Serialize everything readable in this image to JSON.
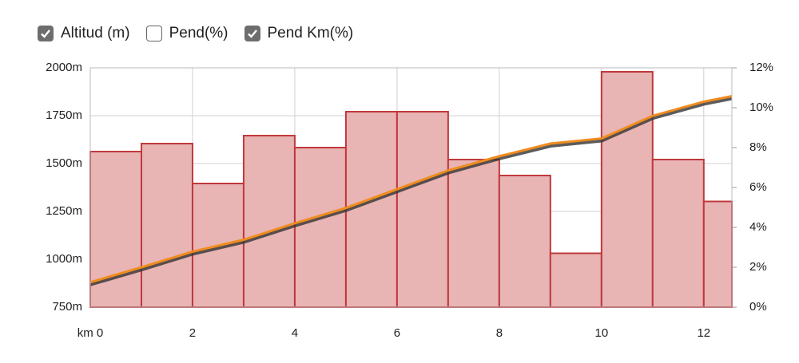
{
  "chart_data": {
    "type": "bar-line",
    "legend": [
      {
        "name": "Altitud (m)",
        "checked": true
      },
      {
        "name": "Pend(%)",
        "checked": false
      },
      {
        "name": "Pend Km(%)",
        "checked": true
      }
    ],
    "xlim": [
      0,
      12.55
    ],
    "xticks": [
      {
        "value": 0,
        "label": "km 0"
      },
      2,
      4,
      6,
      8,
      10,
      12
    ],
    "ylim": [
      750,
      2000
    ],
    "yticks": [
      {
        "value": 750,
        "label": "750m"
      },
      {
        "value": 1000,
        "label": "1000m"
      },
      {
        "value": 1250,
        "label": "1250m"
      },
      {
        "value": 1500,
        "label": "1500m"
      },
      {
        "value": 1750,
        "label": "1750m"
      },
      {
        "value": 2000,
        "label": "2000m"
      }
    ],
    "y2lim": [
      0,
      12
    ],
    "y2ticks": [
      {
        "value": 0,
        "label": "0%"
      },
      {
        "value": 2,
        "label": "2%"
      },
      {
        "value": 4,
        "label": "4%"
      },
      {
        "value": 6,
        "label": "6%"
      },
      {
        "value": 8,
        "label": "8%"
      },
      {
        "value": 10,
        "label": "10%"
      },
      {
        "value": 12,
        "label": "12%"
      }
    ],
    "grid": true,
    "series": [
      {
        "type": "line",
        "color": "#f08c1e",
        "x": [
          0,
          1,
          2,
          3,
          4,
          5,
          6,
          7,
          8,
          9,
          10,
          11,
          12,
          12.55
        ],
        "values": [
          880,
          958,
          1040,
          1102,
          1188,
          1268,
          1366,
          1464,
          1538,
          1604,
          1631,
          1749,
          1823,
          1852
        ]
      },
      {
        "type": "bar",
        "axis": "y2",
        "color": "#e8b4b4",
        "edge_color": "#c0393b",
        "bins": [
          0,
          1,
          2,
          3,
          4,
          5,
          6,
          7,
          8,
          9,
          10,
          11,
          12,
          12.55
        ],
        "values": [
          7.8,
          8.2,
          6.2,
          8.6,
          8.0,
          9.8,
          9.8,
          7.4,
          6.6,
          2.7,
          11.8,
          7.4,
          5.3
        ]
      }
    ]
  }
}
